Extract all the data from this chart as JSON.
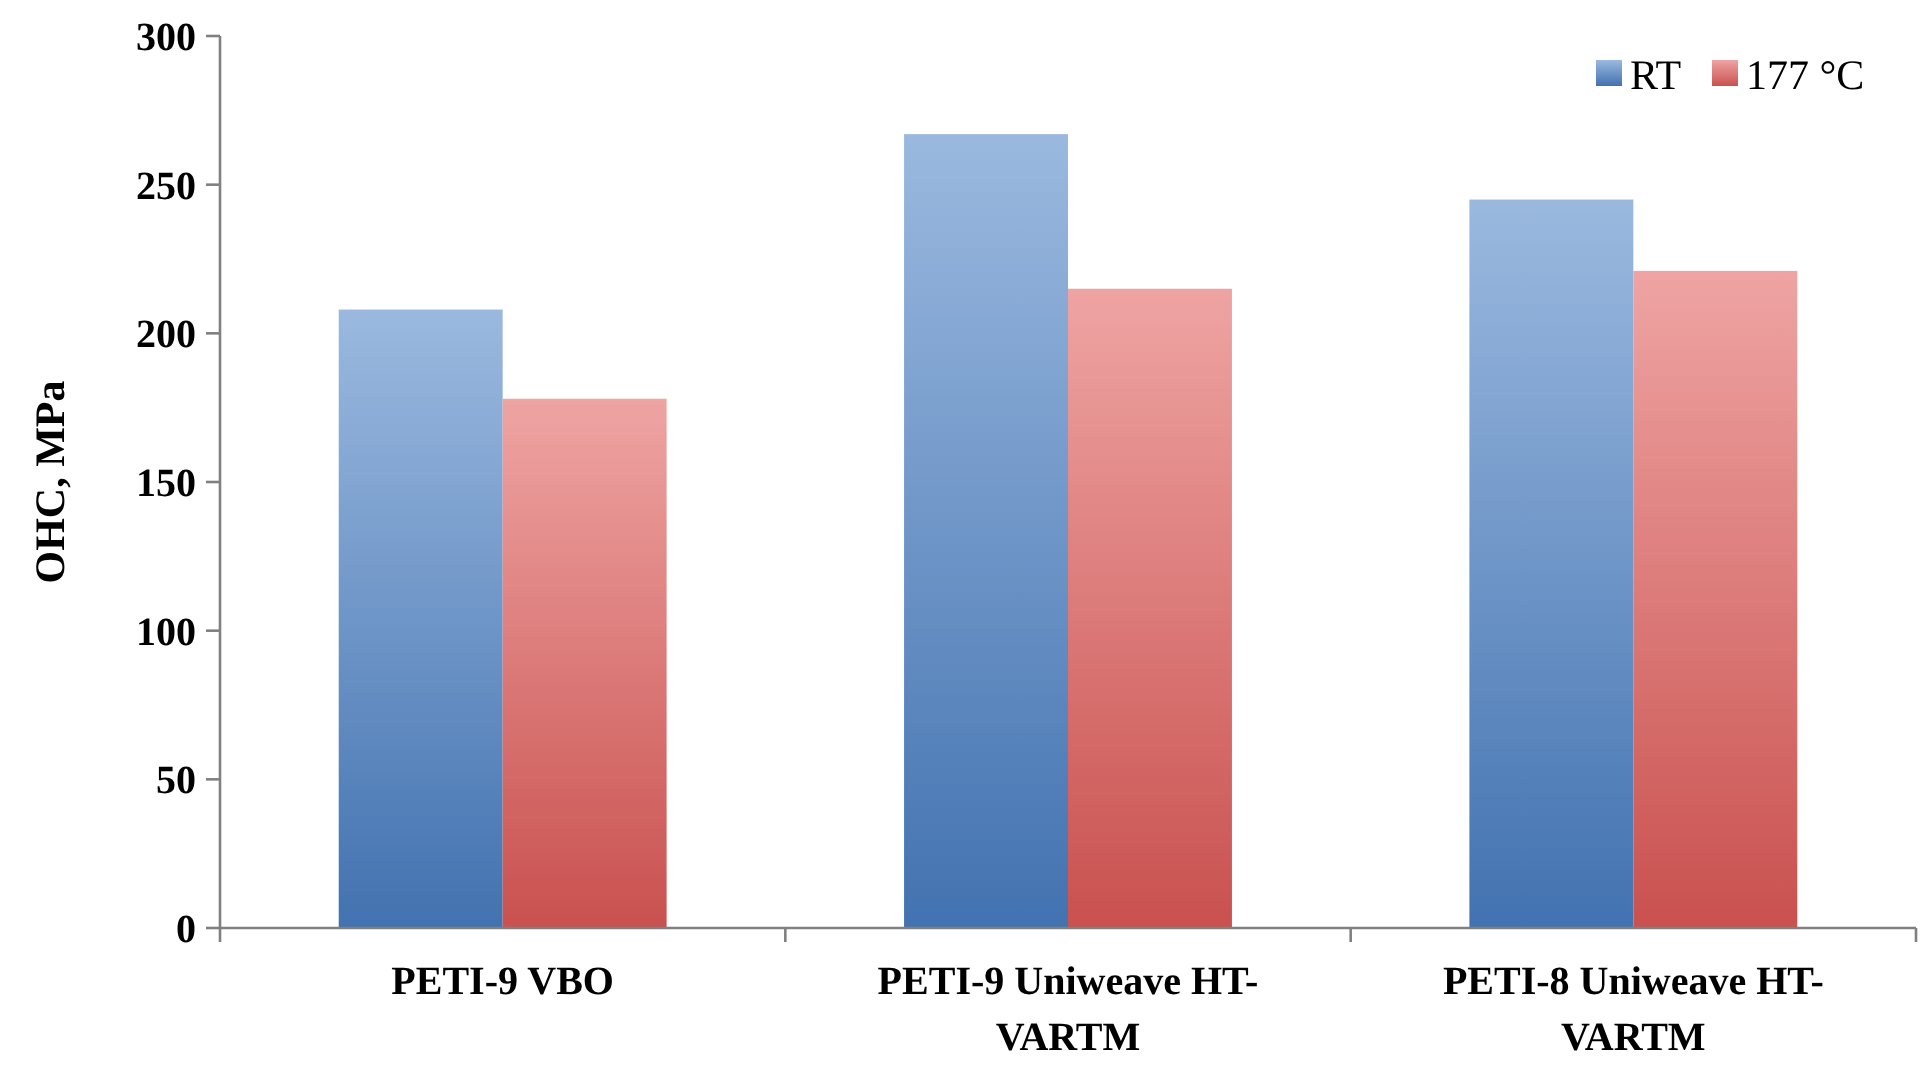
{
  "chart_data": {
    "type": "bar",
    "ylabel": "OHC, MPa",
    "categories": [
      "PETI-9 VBO",
      "PETI-9 Uniweave HT-VARTM",
      "PETI-8 Uniweave HT-VARTM"
    ],
    "series": [
      {
        "name": "RT",
        "color": "#4a7fc4",
        "values": [
          208,
          267,
          245
        ]
      },
      {
        "name": "177 °C",
        "color": "#e05a58",
        "values": [
          178,
          215,
          221
        ]
      }
    ],
    "ylim": [
      0,
      300
    ],
    "yticks": [
      0,
      50,
      100,
      150,
      200,
      250,
      300
    ],
    "grid": false,
    "legend": "top right"
  }
}
